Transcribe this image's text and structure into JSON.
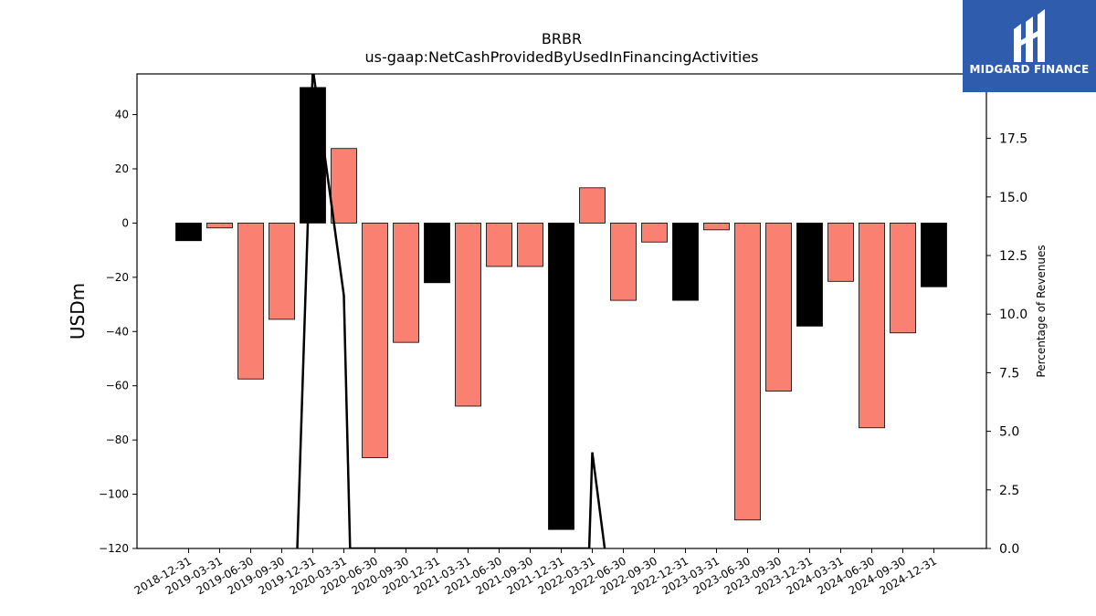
{
  "chart_data": {
    "type": "bar",
    "title": "BRBR",
    "subtitle": "us-gaap:NetCashProvidedByUsedInFinancingActivities",
    "ylabel": "USDm",
    "y2label": "Percentage of Revenues",
    "ylim": [
      -120,
      55
    ],
    "y2lim": [
      0,
      20.25
    ],
    "yticks": [
      -120,
      -100,
      -80,
      -60,
      -40,
      -20,
      0,
      20,
      40
    ],
    "ytick_labels": [
      "−120",
      "−100",
      "−80",
      "−60",
      "−40",
      "−20",
      "0",
      "20",
      "40"
    ],
    "y2ticks": [
      0,
      2.5,
      5,
      7.5,
      10,
      12.5,
      15,
      17.5
    ],
    "y2tick_labels": [
      "0.0",
      "2.5",
      "5.0",
      "7.5",
      "10.0",
      "12.5",
      "15.0",
      "17.5"
    ],
    "categories": [
      "2018-12-31",
      "2019-03-31",
      "2019-06-30",
      "2019-09-30",
      "2019-12-31",
      "2020-03-31",
      "2020-06-30",
      "2020-09-30",
      "2020-12-31",
      "2021-03-31",
      "2021-06-30",
      "2021-09-30",
      "2021-12-31",
      "2022-03-31",
      "2022-06-30",
      "2022-09-30",
      "2022-12-31",
      "2023-03-31",
      "2023-06-30",
      "2023-09-30",
      "2023-12-31",
      "2024-03-31",
      "2024-06-30",
      "2024-09-30",
      "2024-12-31"
    ],
    "values": [
      -6.5,
      -1.8,
      -57.5,
      -35.5,
      50,
      27.5,
      -86.5,
      -44,
      -22,
      -67.5,
      -16,
      -16,
      -113,
      13,
      -28.5,
      -7,
      -28.5,
      -2.5,
      -109.5,
      -62,
      -38,
      -21.5,
      -75.5,
      -40.5,
      -23.5
    ],
    "bar_colors": [
      "#000000",
      "#fa8072",
      "#fa8072",
      "#fa8072",
      "#000000",
      "#fa8072",
      "#fa8072",
      "#fa8072",
      "#000000",
      "#fa8072",
      "#fa8072",
      "#fa8072",
      "#000000",
      "#fa8072",
      "#fa8072",
      "#fa8072",
      "#000000",
      "#fa8072",
      "#fa8072",
      "#fa8072",
      "#000000",
      "#fa8072",
      "#fa8072",
      "#fa8072",
      "#000000"
    ],
    "line_series": {
      "axis": "secondary",
      "color": "#000000",
      "points": [
        {
          "x": 3.5,
          "y": 0
        },
        {
          "x": 4,
          "y": 20.5
        },
        {
          "x": 5,
          "y": 10.8
        },
        {
          "x": 5.2,
          "y": 0
        },
        {
          "x": 12.9,
          "y": 0
        },
        {
          "x": 13,
          "y": 4.1
        },
        {
          "x": 13.4,
          "y": 0
        }
      ]
    },
    "grid": false
  },
  "logo": {
    "text": "MIDGARD FINANCE",
    "background": "#2f5cad"
  }
}
